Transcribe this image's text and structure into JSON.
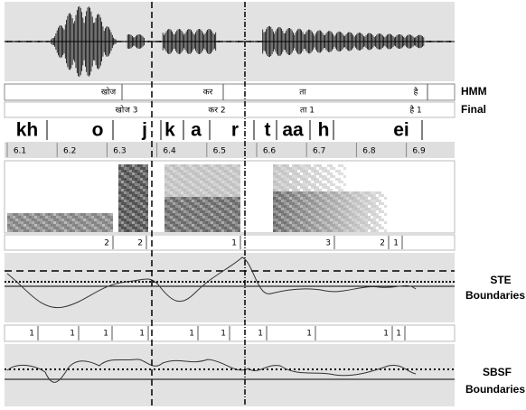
{
  "tiers": {
    "hmm": {
      "name": "HMM",
      "labels": [
        "खोज",
        "कर",
        "ता",
        "है"
      ]
    },
    "final": {
      "name": "Final",
      "labels": [
        "खोज 3",
        "कर 2",
        "ता 1",
        "है 1"
      ]
    }
  },
  "phonemes": [
    "kh",
    "o",
    "j",
    "k",
    "a",
    "r",
    "t",
    "aa",
    "h",
    "ei"
  ],
  "time_ticks": [
    6.1,
    6.2,
    6.3,
    6.4,
    6.5,
    6.6,
    6.7,
    6.8,
    6.9
  ],
  "ste": {
    "label": "STE",
    "sublabel": "Boundaries",
    "boundary_marks": [
      2,
      2,
      1,
      3,
      2,
      1
    ]
  },
  "sbsf": {
    "label": "SBSF",
    "sublabel": "Boundaries",
    "boundary_marks": [
      1,
      1,
      1,
      1,
      1,
      1,
      1,
      1,
      1,
      1
    ]
  }
}
